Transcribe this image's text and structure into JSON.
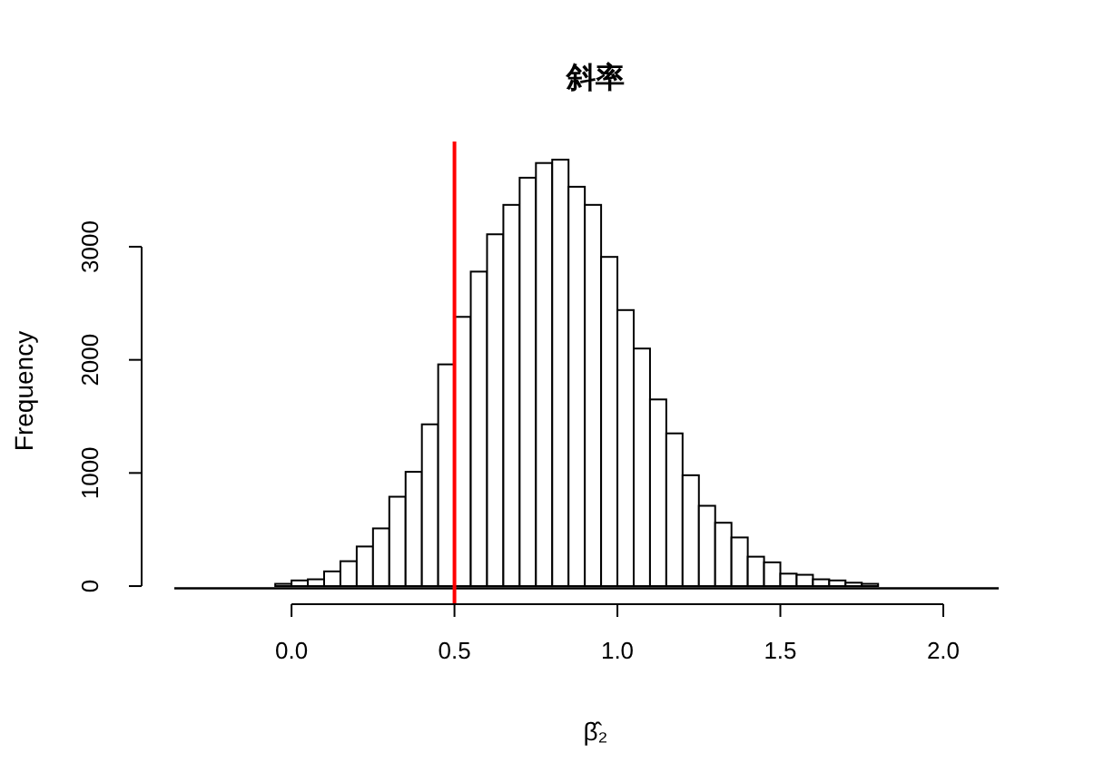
{
  "chart_data": {
    "type": "histogram",
    "title": "斜率",
    "xlabel": "β̂₂",
    "ylabel": "Frequency",
    "bins": [
      -0.05,
      0,
      0.05,
      0.1,
      0.15,
      0.2,
      0.25,
      0.3,
      0.35,
      0.4,
      0.45,
      0.5,
      0.55,
      0.6,
      0.65,
      0.7,
      0.75,
      0.8,
      0.85,
      0.9,
      0.95,
      1.0,
      1.05,
      1.1,
      1.15,
      1.2,
      1.25,
      1.3,
      1.35,
      1.4,
      1.45,
      1.5,
      1.55,
      1.6,
      1.65,
      1.7,
      1.75,
      1.8
    ],
    "values": [
      20,
      50,
      60,
      130,
      220,
      350,
      510,
      790,
      1010,
      1430,
      1960,
      2380,
      2780,
      3110,
      3370,
      3610,
      3740,
      3770,
      3530,
      3370,
      2910,
      2440,
      2100,
      1650,
      1350,
      980,
      710,
      560,
      430,
      260,
      210,
      110,
      100,
      60,
      50,
      30,
      20
    ],
    "color": "#ffffff",
    "xlim": [
      -0.46,
      2.17
    ],
    "ylim": [
      -160,
      3930
    ],
    "xticks": [
      {
        "value": 0,
        "label": "0.0"
      },
      {
        "value": 0.5,
        "label": "0.5"
      },
      {
        "value": 1,
        "label": "1.0"
      },
      {
        "value": 1.5,
        "label": "1.5"
      },
      {
        "value": 2,
        "label": "2.0"
      }
    ],
    "yticks": [
      0,
      1000,
      2000,
      3000
    ],
    "ref_lines": [
      {
        "axis": "x",
        "value": 0.5,
        "color": "#ff0000"
      },
      {
        "axis": "y",
        "value": 0,
        "color": "#000000"
      }
    ],
    "grid": false
  }
}
